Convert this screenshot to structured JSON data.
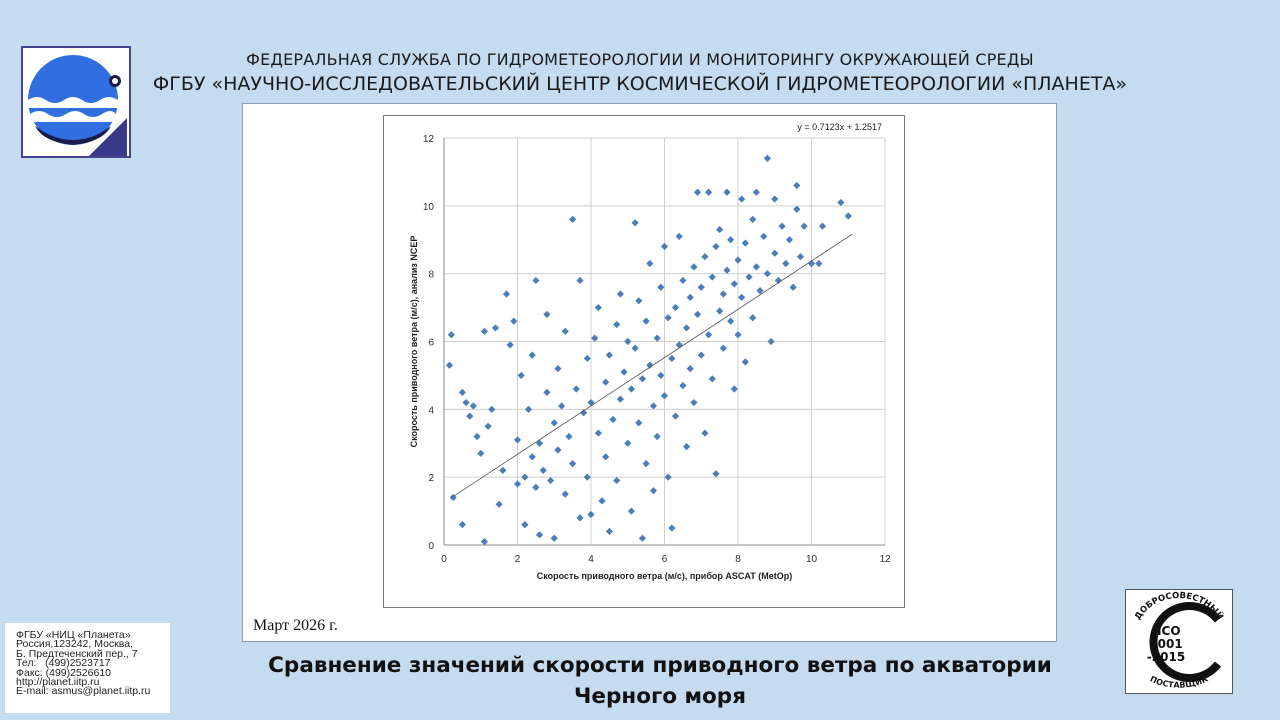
{
  "header": {
    "line1": "ФЕДЕРАЛЬНАЯ СЛУЖБА ПО ГИДРОМЕТЕОРОЛОГИИ И МОНИТОРИНГУ ОКРУЖАЮЩЕЙ СРЕДЫ",
    "line2": "ФГБУ «НАУЧНО-ИССЛЕДОВАТЕЛЬСКИЙ ЦЕНТР КОСМИЧЕСКОЙ ГИДРОМЕТЕОРОЛОГИИ «ПЛАНЕТА»"
  },
  "date_label": "Март 2026 г.",
  "caption": {
    "line1": "Сравнение значений скорости приводного ветра по акватории",
    "line2": "Черного моря"
  },
  "contact": [
    "ФГБУ «НИЦ «Планета»",
    "Россия,123242, Москва,",
    "Б. Предтеченский пер., 7",
    "Тел:   (499)2523717",
    "Факс: (499)2526610",
    "http://planet.iitp.ru",
    "E-mail: asmus@planet.iitp.ru"
  ],
  "iso_badge": {
    "top_text": "ДОБРОСОВЕСТНЫЙ",
    "line1": "ИСО",
    "line2": "9001",
    "line3": "-2015",
    "bottom_text": "ПОСТАВЩИК"
  },
  "colors": {
    "background": "#c5dbef",
    "marker": "#4a7ebb",
    "logo_blue": "#2f6fe0",
    "logo_border": "#43438f"
  },
  "chart_data": {
    "type": "scatter",
    "xlabel": "Скорость приводного ветра (м/с), прибор ASCAT (MetOp)",
    "ylabel": "Скорость приводного ветра (м/с), анализ NCEP",
    "xlim": [
      0,
      12
    ],
    "ylim": [
      0,
      12
    ],
    "xticks": [
      "0",
      "2",
      "4",
      "6",
      "8",
      "10",
      "12"
    ],
    "yticks": [
      "0",
      "2",
      "4",
      "6",
      "8",
      "10",
      "12"
    ],
    "grid": true,
    "trendline": {
      "slope": 0.7123,
      "intercept": 1.2517,
      "x_range": [
        0.2,
        11.1
      ],
      "label": "y = 0.7123x + 1.2517"
    },
    "series": [
      {
        "points": [
          [
            0.2,
            6.2
          ],
          [
            0.15,
            5.3
          ],
          [
            0.25,
            1.4
          ],
          [
            0.5,
            0.6
          ],
          [
            0.5,
            4.5
          ],
          [
            0.6,
            4.2
          ],
          [
            0.7,
            3.8
          ],
          [
            0.8,
            4.1
          ],
          [
            0.9,
            3.2
          ],
          [
            1.0,
            2.7
          ],
          [
            1.1,
            0.1
          ],
          [
            1.1,
            6.3
          ],
          [
            1.2,
            3.5
          ],
          [
            1.3,
            4.0
          ],
          [
            1.4,
            6.4
          ],
          [
            1.5,
            1.2
          ],
          [
            1.6,
            2.2
          ],
          [
            1.7,
            7.4
          ],
          [
            1.8,
            5.9
          ],
          [
            1.9,
            6.6
          ],
          [
            2.0,
            1.8
          ],
          [
            2.0,
            3.1
          ],
          [
            2.1,
            5.0
          ],
          [
            2.2,
            2.0
          ],
          [
            2.2,
            0.6
          ],
          [
            2.3,
            4.0
          ],
          [
            2.4,
            2.6
          ],
          [
            2.4,
            5.6
          ],
          [
            2.5,
            1.7
          ],
          [
            2.5,
            7.8
          ],
          [
            2.6,
            3.0
          ],
          [
            2.6,
            0.3
          ],
          [
            2.7,
            2.2
          ],
          [
            2.8,
            4.5
          ],
          [
            2.8,
            6.8
          ],
          [
            2.9,
            1.9
          ],
          [
            3.0,
            3.6
          ],
          [
            3.0,
            0.2
          ],
          [
            3.1,
            2.8
          ],
          [
            3.1,
            5.2
          ],
          [
            3.2,
            4.1
          ],
          [
            3.3,
            1.5
          ],
          [
            3.3,
            6.3
          ],
          [
            3.4,
            3.2
          ],
          [
            3.5,
            9.6
          ],
          [
            3.5,
            2.4
          ],
          [
            3.6,
            4.6
          ],
          [
            3.7,
            7.8
          ],
          [
            3.7,
            0.8
          ],
          [
            3.8,
            3.9
          ],
          [
            3.9,
            5.5
          ],
          [
            3.9,
            2.0
          ],
          [
            4.0,
            4.2
          ],
          [
            4.0,
            0.9
          ],
          [
            4.1,
            6.1
          ],
          [
            4.2,
            3.3
          ],
          [
            4.2,
            7.0
          ],
          [
            4.3,
            1.3
          ],
          [
            4.4,
            4.8
          ],
          [
            4.4,
            2.6
          ],
          [
            4.5,
            5.6
          ],
          [
            4.5,
            0.4
          ],
          [
            4.6,
            3.7
          ],
          [
            4.7,
            6.5
          ],
          [
            4.7,
            1.9
          ],
          [
            4.8,
            4.3
          ],
          [
            4.8,
            7.4
          ],
          [
            4.9,
            5.1
          ],
          [
            5.0,
            3.0
          ],
          [
            5.0,
            6.0
          ],
          [
            5.1,
            4.6
          ],
          [
            5.1,
            1.0
          ],
          [
            5.2,
            5.8
          ],
          [
            5.2,
            9.5
          ],
          [
            5.3,
            3.6
          ],
          [
            5.3,
            7.2
          ],
          [
            5.4,
            4.9
          ],
          [
            5.4,
            0.2
          ],
          [
            5.5,
            6.6
          ],
          [
            5.5,
            2.4
          ],
          [
            5.6,
            5.3
          ],
          [
            5.6,
            8.3
          ],
          [
            5.7,
            4.1
          ],
          [
            5.7,
            1.6
          ],
          [
            5.8,
            6.1
          ],
          [
            5.8,
            3.2
          ],
          [
            5.9,
            7.6
          ],
          [
            5.9,
            5.0
          ],
          [
            6.0,
            4.4
          ],
          [
            6.0,
            8.8
          ],
          [
            6.1,
            6.7
          ],
          [
            6.1,
            2.0
          ],
          [
            6.2,
            5.5
          ],
          [
            6.2,
            0.5
          ],
          [
            6.3,
            7.0
          ],
          [
            6.3,
            3.8
          ],
          [
            6.4,
            5.9
          ],
          [
            6.4,
            9.1
          ],
          [
            6.5,
            4.7
          ],
          [
            6.5,
            7.8
          ],
          [
            6.6,
            6.4
          ],
          [
            6.6,
            2.9
          ],
          [
            6.7,
            7.3
          ],
          [
            6.7,
            5.2
          ],
          [
            6.8,
            8.2
          ],
          [
            6.8,
            4.2
          ],
          [
            6.9,
            6.8
          ],
          [
            6.9,
            10.4
          ],
          [
            7.0,
            7.6
          ],
          [
            7.0,
            5.6
          ],
          [
            7.1,
            8.5
          ],
          [
            7.1,
            3.3
          ],
          [
            7.2,
            6.2
          ],
          [
            7.2,
            10.4
          ],
          [
            7.3,
            7.9
          ],
          [
            7.3,
            4.9
          ],
          [
            7.4,
            8.8
          ],
          [
            7.4,
            2.1
          ],
          [
            7.5,
            6.9
          ],
          [
            7.5,
            9.3
          ],
          [
            7.6,
            7.4
          ],
          [
            7.6,
            5.8
          ],
          [
            7.7,
            8.1
          ],
          [
            7.7,
            10.4
          ],
          [
            7.8,
            6.6
          ],
          [
            7.8,
            9.0
          ],
          [
            7.9,
            7.7
          ],
          [
            7.9,
            4.6
          ],
          [
            8.0,
            8.4
          ],
          [
            8.0,
            6.2
          ],
          [
            8.1,
            10.2
          ],
          [
            8.1,
            7.3
          ],
          [
            8.2,
            8.9
          ],
          [
            8.2,
            5.4
          ],
          [
            8.3,
            7.9
          ],
          [
            8.4,
            9.6
          ],
          [
            8.4,
            6.7
          ],
          [
            8.5,
            8.2
          ],
          [
            8.5,
            10.4
          ],
          [
            8.6,
            7.5
          ],
          [
            8.7,
            9.1
          ],
          [
            8.8,
            11.4
          ],
          [
            8.8,
            8.0
          ],
          [
            8.9,
            6.0
          ],
          [
            9.0,
            8.6
          ],
          [
            9.0,
            10.2
          ],
          [
            9.1,
            7.8
          ],
          [
            9.2,
            9.4
          ],
          [
            9.3,
            8.3
          ],
          [
            9.4,
            9.0
          ],
          [
            9.5,
            7.6
          ],
          [
            9.6,
            10.6
          ],
          [
            9.7,
            8.5
          ],
          [
            9.8,
            9.4
          ],
          [
            10.0,
            8.3
          ],
          [
            10.2,
            8.3
          ],
          [
            10.3,
            9.4
          ],
          [
            10.8,
            10.1
          ],
          [
            11.0,
            9.7
          ],
          [
            9.6,
            9.9
          ]
        ]
      }
    ]
  }
}
